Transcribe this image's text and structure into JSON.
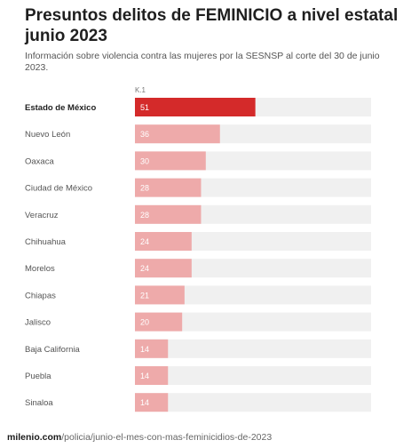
{
  "header": {
    "title": "Presuntos delitos de FEMINICIO a nivel estatal junio 2023",
    "subtitle": "Información sobre violencia contra las mujeres por la SESNSP al corte del 30 de junio 2023."
  },
  "source": {
    "domain": "milenio.com",
    "path": "/policia/junio-el-mes-con-mas-feminicidios-de-2023"
  },
  "colors": {
    "highlight": "#d42a2a",
    "bar": "#eeaaaa",
    "track": "#f0f0f0",
    "label_text": "#555555"
  },
  "chart_data": {
    "type": "bar",
    "orientation": "horizontal",
    "column_label": "K.1",
    "categories": [
      "Estado de México",
      "Nuevo León",
      "Oaxaca",
      "Ciudad de México",
      "Veracruz",
      "Chihuahua",
      "Morelos",
      "Chiapas",
      "Jalisco",
      "Baja California",
      "Puebla",
      "Sinaloa"
    ],
    "values": [
      51,
      36,
      30,
      28,
      28,
      24,
      24,
      21,
      20,
      14,
      14,
      14
    ],
    "highlighted_category": "Estado de México",
    "xlim": [
      0,
      100
    ],
    "grid": false,
    "legend": "none"
  }
}
